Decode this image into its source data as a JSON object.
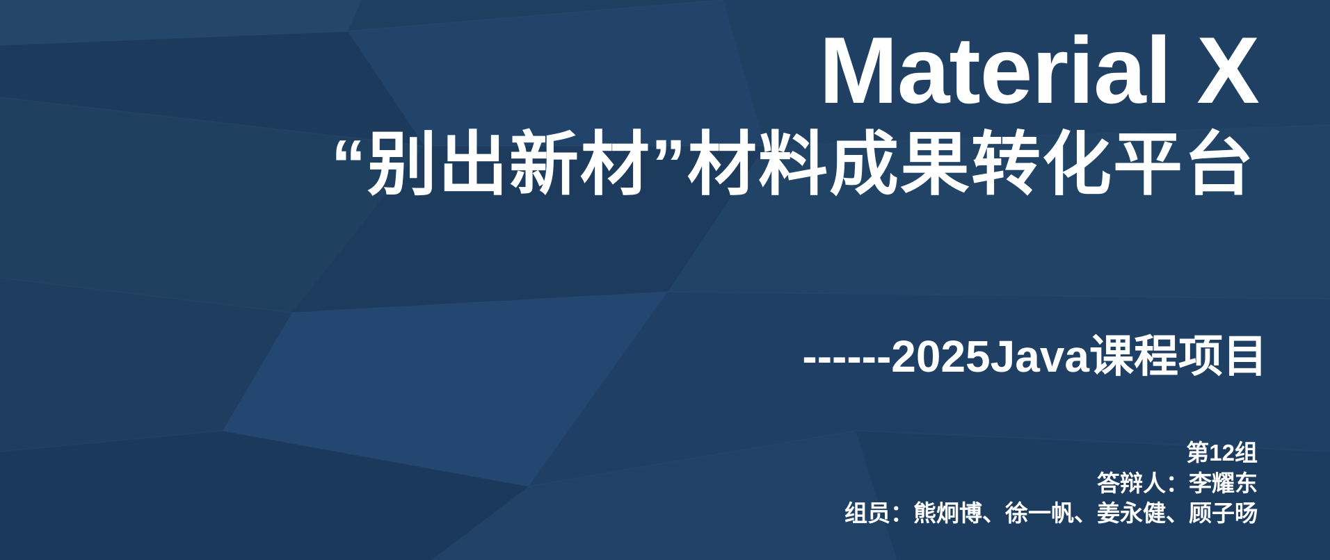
{
  "slide": {
    "title": "Material X",
    "subtitle": "“别出新材”材料成果转化平台",
    "course": "------2025Java课程项目",
    "group": "第12组",
    "presenter": "答辩人：李耀东",
    "members": "组员：熊炯博、徐一帆、姜永健、顾子旸"
  },
  "colors": {
    "background": "#1f3f61",
    "text": "#ffffff"
  }
}
